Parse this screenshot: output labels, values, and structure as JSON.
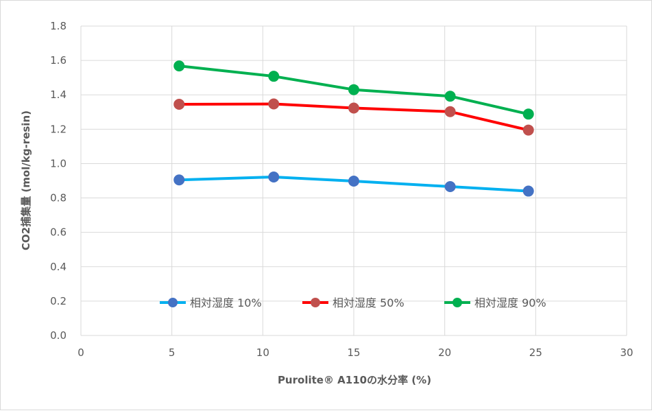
{
  "chart_data": {
    "type": "line",
    "title": "",
    "xlabel": "Purolite® A110の水分率 (%)",
    "ylabel": "CO2捕集量 (mol/kg-resin)",
    "xlim": [
      0,
      30
    ],
    "ylim": [
      0,
      1.8
    ],
    "x_ticks": [
      "0",
      "5",
      "10",
      "15",
      "20",
      "25",
      "30"
    ],
    "y_ticks": [
      "0.0",
      "0.2",
      "0.4",
      "0.6",
      "0.8",
      "1.0",
      "1.2",
      "1.4",
      "1.6",
      "1.8"
    ],
    "grid": true,
    "legend_position": "inside-bottom",
    "series": [
      {
        "name": "相対湿度 10%",
        "line_color": "#00b0f0",
        "marker_color": "#4472c4",
        "x": [
          5.4,
          10.6,
          15.0,
          20.3,
          24.6
        ],
        "y": [
          0.905,
          0.922,
          0.898,
          0.866,
          0.84
        ]
      },
      {
        "name": "相対湿度 50%",
        "line_color": "#ff0000",
        "marker_color": "#c0504d",
        "x": [
          5.4,
          10.6,
          15.0,
          20.3,
          24.6
        ],
        "y": [
          1.345,
          1.347,
          1.323,
          1.302,
          1.195
        ]
      },
      {
        "name": "相対湿度 90%",
        "line_color": "#00b050",
        "marker_color": "#00b050",
        "x": [
          5.4,
          10.6,
          15.0,
          20.3,
          24.6
        ],
        "y": [
          1.568,
          1.508,
          1.43,
          1.392,
          1.288
        ]
      }
    ]
  }
}
